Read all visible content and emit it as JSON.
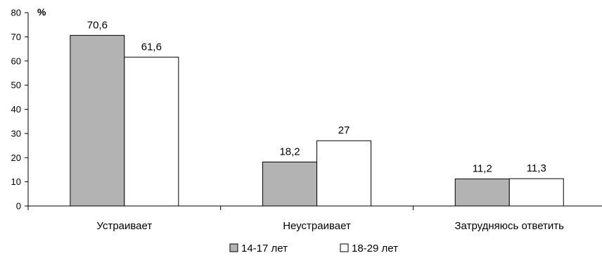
{
  "chart_data": {
    "type": "bar",
    "unit_label": "%",
    "categories": [
      "Устраивает",
      "Неустраивает",
      "Затрудняюсь ответить"
    ],
    "series": [
      {
        "name": "14-17 лет",
        "color": "#b3b3b3",
        "values": [
          70.6,
          18.2,
          11.2
        ],
        "value_labels": [
          "70,6",
          "18,2",
          "11,2"
        ]
      },
      {
        "name": "18-29 лет",
        "color": "#ffffff",
        "values": [
          61.6,
          27,
          11.3
        ],
        "value_labels": [
          "61,6",
          "27",
          "11,3"
        ]
      }
    ],
    "ylim": [
      0,
      80
    ],
    "yticks": [
      0,
      10,
      20,
      30,
      40,
      50,
      60,
      70,
      80
    ],
    "grid": false,
    "legend_position": "bottom"
  }
}
